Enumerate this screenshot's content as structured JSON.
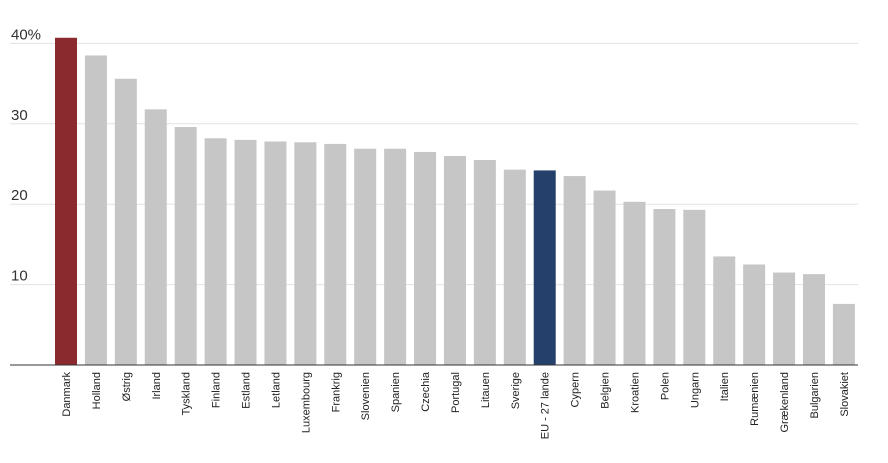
{
  "chart_data": {
    "type": "bar",
    "categories": [
      "Danmark",
      "Holland",
      "Østrig",
      "Irland",
      "Tyskland",
      "Finland",
      "Estland",
      "Letland",
      "Luxembourg",
      "Frankrig",
      "Slovenien",
      "Spanien",
      "Czechia",
      "Portugal",
      "Litauen",
      "Sverige",
      "EU - 27 lande",
      "Cypern",
      "Belgien",
      "Kroatien",
      "Polen",
      "Ungarn",
      "Italien",
      "Rumænien",
      "Grækenland",
      "Bulgarien",
      "Slovakiet"
    ],
    "values": [
      40.7,
      38.5,
      35.6,
      31.8,
      29.6,
      28.2,
      28.0,
      27.8,
      27.7,
      27.5,
      26.9,
      26.9,
      26.5,
      26.0,
      25.5,
      24.3,
      24.2,
      23.5,
      21.7,
      20.3,
      19.4,
      19.3,
      13.5,
      12.5,
      11.5,
      11.3,
      7.6
    ],
    "highlights": {
      "Danmark": "#8b2a2e",
      "EU - 27 lande": "#25406a"
    },
    "bar_color": "#c6c6c6",
    "ylim": [
      0,
      42
    ],
    "yticks": [
      {
        "value": 10,
        "label": "10"
      },
      {
        "value": 20,
        "label": "20"
      },
      {
        "value": 30,
        "label": "30"
      },
      {
        "value": 40,
        "label": "40%"
      }
    ],
    "grid": true,
    "title": "",
    "xlabel": "",
    "ylabel": ""
  }
}
